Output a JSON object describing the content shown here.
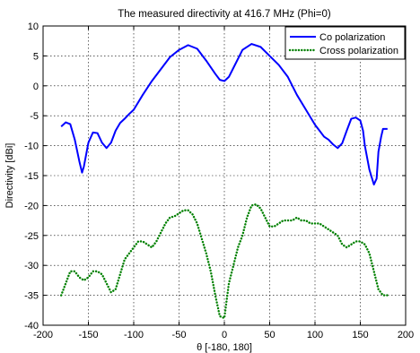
{
  "chart_data": {
    "type": "line",
    "title": "The measured directivity at 416.7 MHz (Phi=0)",
    "xlabel": "θ [-180, 180]",
    "ylabel": "Directivity [dBi]",
    "xlim": [
      -200,
      200
    ],
    "ylim": [
      -40,
      10
    ],
    "xticks": [
      -200,
      -150,
      -100,
      -50,
      0,
      50,
      100,
      150,
      200
    ],
    "yticks": [
      -40,
      -35,
      -30,
      -25,
      -20,
      -15,
      -10,
      -5,
      0,
      5,
      10
    ],
    "grid": true,
    "legend_position": "top-right",
    "series": [
      {
        "name": "Co polarization",
        "color": "#0000ff",
        "style": "solid",
        "x": [
          -180,
          -175,
          -170,
          -165,
          -160,
          -157,
          -155,
          -150,
          -145,
          -140,
          -135,
          -130,
          -125,
          -120,
          -115,
          -110,
          -105,
          -100,
          -90,
          -80,
          -70,
          -60,
          -50,
          -40,
          -30,
          -20,
          -10,
          -5,
          0,
          5,
          10,
          20,
          30,
          40,
          50,
          60,
          70,
          80,
          90,
          100,
          105,
          110,
          115,
          120,
          125,
          130,
          135,
          140,
          145,
          150,
          153,
          155,
          160,
          165,
          168,
          170,
          173,
          175,
          180
        ],
        "y": [
          -6.8,
          -6.1,
          -6.4,
          -9,
          -12.6,
          -14.5,
          -13.5,
          -9.5,
          -7.8,
          -7.9,
          -9.5,
          -10.4,
          -9.5,
          -7.5,
          -6.2,
          -5.5,
          -4.7,
          -4,
          -1.5,
          0.8,
          2.8,
          4.8,
          6,
          6.8,
          6.2,
          4.2,
          2,
          1,
          0.8,
          1.5,
          3,
          6,
          7,
          6.5,
          5,
          3.5,
          1.5,
          -1.5,
          -4,
          -6.5,
          -7.5,
          -8.5,
          -9,
          -9.8,
          -10.4,
          -9.6,
          -7.5,
          -5.5,
          -5.3,
          -5.8,
          -7.5,
          -10,
          -14,
          -16.5,
          -15.5,
          -11,
          -8.5,
          -7.2,
          -7.2
        ]
      },
      {
        "name": "Cross polarization",
        "color": "#008000",
        "style": "dotted",
        "x": [
          -180,
          -175,
          -170,
          -165,
          -160,
          -155,
          -150,
          -145,
          -140,
          -135,
          -130,
          -125,
          -120,
          -115,
          -110,
          -105,
          -100,
          -95,
          -90,
          -85,
          -80,
          -75,
          -70,
          -65,
          -60,
          -55,
          -50,
          -45,
          -40,
          -35,
          -30,
          -25,
          -20,
          -15,
          -10,
          -5,
          0,
          5,
          10,
          15,
          20,
          25,
          30,
          35,
          40,
          45,
          50,
          55,
          60,
          65,
          70,
          75,
          80,
          85,
          90,
          95,
          100,
          105,
          110,
          115,
          120,
          125,
          130,
          135,
          140,
          145,
          150,
          155,
          160,
          165,
          170,
          175,
          180
        ],
        "y": [
          -35,
          -33,
          -31,
          -31,
          -32,
          -32.5,
          -32,
          -31,
          -31,
          -31.5,
          -33,
          -34.5,
          -34,
          -31.5,
          -29,
          -28,
          -27,
          -26,
          -26,
          -26.5,
          -27,
          -26,
          -24.5,
          -23,
          -22,
          -21.8,
          -21.3,
          -20.8,
          -20.8,
          -21.5,
          -23,
          -25.5,
          -28,
          -31,
          -35,
          -38.5,
          -38.8,
          -33,
          -30,
          -27,
          -25,
          -22,
          -20,
          -19.8,
          -20.5,
          -22,
          -23.5,
          -23.5,
          -23,
          -22.5,
          -22.5,
          -22.5,
          -22,
          -22.5,
          -22.5,
          -23,
          -23,
          -23,
          -23.5,
          -24,
          -24.5,
          -25,
          -26.5,
          -27,
          -26.5,
          -26,
          -26,
          -26.5,
          -28,
          -31,
          -34,
          -35,
          -35
        ]
      }
    ]
  }
}
